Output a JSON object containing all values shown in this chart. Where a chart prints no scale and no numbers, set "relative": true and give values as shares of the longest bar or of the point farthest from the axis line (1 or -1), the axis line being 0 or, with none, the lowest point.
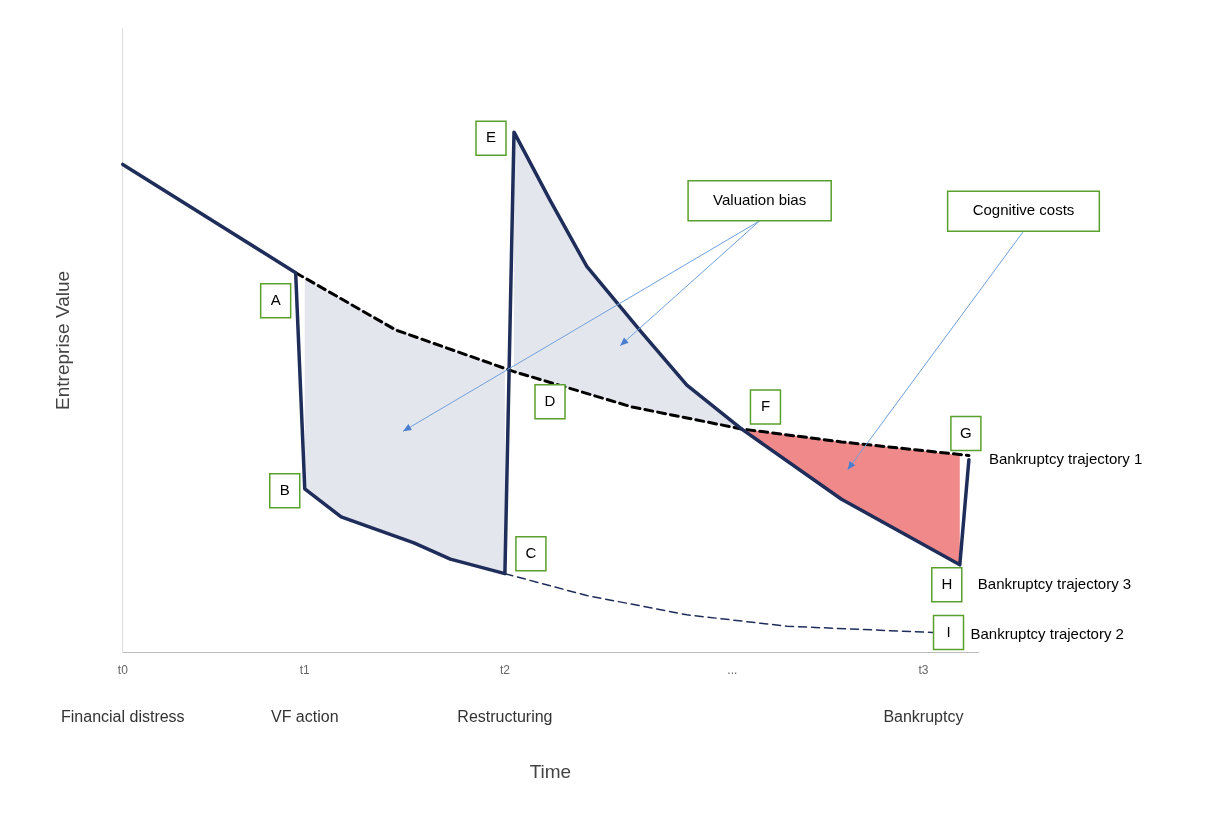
{
  "chart_data": {
    "type": "line",
    "relative": true,
    "xlabel": "Time",
    "ylabel": "Entreprise Value",
    "legend": false,
    "categories": [
      "t0",
      null,
      null,
      null,
      null,
      null,
      null,
      null,
      null,
      null,
      null,
      null,
      null,
      null,
      null,
      null,
      null,
      null,
      null,
      null,
      "t1",
      null,
      null,
      null,
      null,
      null,
      null,
      null,
      null,
      null,
      null,
      null,
      null,
      null,
      null,
      null,
      null,
      null,
      null,
      null,
      null,
      null,
      "t2",
      null,
      null,
      null,
      null,
      null,
      null,
      null,
      null,
      null,
      null,
      null,
      null,
      null,
      null,
      null,
      null,
      null,
      null,
      null,
      null,
      null,
      null,
      null,
      null,
      "...",
      null,
      null,
      null,
      null,
      null,
      null,
      null,
      null,
      null,
      null,
      null,
      null,
      null,
      null,
      null,
      null,
      null,
      null,
      null,
      null,
      "t3",
      null,
      null,
      null,
      null,
      null,
      null
    ],
    "series": [
      {
        "type": "area",
        "color": "#e4e6ee",
        "values": [
          null,
          null,
          null,
          null,
          null,
          null,
          null,
          null,
          null,
          null,
          null,
          null,
          null,
          null,
          null,
          null,
          null,
          null,
          null,
          null,
          0.72,
          null,
          null,
          null,
          0.68,
          null,
          null,
          null,
          null,
          null,
          null,
          null,
          0.607,
          null,
          null,
          null,
          0.582,
          null,
          null,
          null,
          null,
          null,
          0.546,
          null,
          null,
          null,
          null,
          null,
          null,
          null,
          null,
          null,
          null,
          null,
          null,
          null,
          null,
          null,
          null,
          null,
          null,
          null,
          null,
          null,
          null,
          null,
          null,
          null,
          null,
          null,
          null,
          null,
          null,
          null,
          null,
          null,
          null,
          null,
          null,
          null,
          null,
          null,
          null,
          null,
          null,
          null,
          null,
          null,
          null,
          null,
          null,
          null,
          null,
          null,
          null
        ]
      },
      {
        "type": "area",
        "color": "#e4e6ee",
        "values": [
          null,
          null,
          null,
          null,
          null,
          null,
          null,
          null,
          null,
          null,
          null,
          null,
          null,
          null,
          null,
          null,
          null,
          null,
          null,
          null,
          null,
          null,
          null,
          null,
          null,
          null,
          null,
          null,
          null,
          null,
          null,
          null,
          null,
          null,
          null,
          null,
          null,
          null,
          null,
          null,
          null,
          null,
          null,
          1.0,
          null,
          null,
          null,
          0.868,
          null,
          null,
          null,
          0.742,
          null,
          null,
          null,
          null,
          null,
          0.616,
          null,
          null,
          null,
          null,
          0.514,
          null,
          null,
          null,
          null,
          null,
          0.43,
          null,
          null,
          null,
          null,
          null,
          null,
          null,
          null,
          null,
          null,
          null,
          null,
          null,
          null,
          null,
          null,
          null,
          null,
          null,
          null,
          null,
          null,
          null,
          null,
          null,
          null
        ]
      },
      {
        "type": "area",
        "color": "#f08a8a",
        "values": [
          null,
          null,
          null,
          null,
          null,
          null,
          null,
          null,
          null,
          null,
          null,
          null,
          null,
          null,
          null,
          null,
          null,
          null,
          null,
          null,
          null,
          null,
          null,
          null,
          null,
          null,
          null,
          null,
          null,
          null,
          null,
          null,
          null,
          null,
          null,
          null,
          null,
          null,
          null,
          null,
          null,
          null,
          null,
          null,
          null,
          null,
          null,
          null,
          null,
          null,
          null,
          null,
          null,
          null,
          null,
          null,
          null,
          null,
          null,
          null,
          null,
          null,
          null,
          null,
          null,
          null,
          null,
          null,
          0.43,
          null,
          null,
          null,
          null,
          null,
          null,
          null,
          null,
          null,
          null,
          0.405,
          null,
          null,
          null,
          null,
          null,
          null,
          null,
          null,
          null,
          null,
          null,
          null,
          0.38,
          null,
          null
        ]
      },
      {
        "color": "#1f2d5a",
        "line_style": "solid",
        "values": [
          0.938,
          null,
          null,
          null,
          null,
          null,
          null,
          null,
          null,
          null,
          null,
          null,
          null,
          null,
          null,
          null,
          null,
          null,
          null,
          0.73,
          0.315,
          null,
          null,
          null,
          0.261,
          null,
          null,
          null,
          null,
          null,
          null,
          null,
          0.211,
          null,
          null,
          null,
          0.18,
          null,
          null,
          null,
          null,
          null,
          0.152,
          1.0,
          null,
          null,
          null,
          0.868,
          null,
          null,
          null,
          0.742,
          null,
          null,
          null,
          null,
          null,
          0.616,
          null,
          null,
          null,
          null,
          0.514,
          null,
          null,
          null,
          null,
          null,
          0.43,
          null,
          null,
          null,
          null,
          null,
          null,
          null,
          null,
          null,
          null,
          0.295,
          null,
          null,
          null,
          null,
          null,
          null,
          null,
          null,
          null,
          null,
          null,
          null,
          0.169,
          0.371,
          null
        ]
      },
      {
        "color": "#000000",
        "line_style": "dashed",
        "values": [
          null,
          null,
          null,
          null,
          null,
          null,
          null,
          null,
          null,
          null,
          null,
          null,
          null,
          null,
          null,
          null,
          null,
          null,
          null,
          0.73,
          null,
          null,
          null,
          null,
          null,
          null,
          null,
          null,
          null,
          null,
          0.62,
          null,
          null,
          null,
          null,
          null,
          null,
          null,
          null,
          null,
          null,
          null,
          null,
          0.54,
          null,
          null,
          null,
          null,
          null,
          null,
          null,
          null,
          null,
          null,
          null,
          null,
          0.472,
          null,
          null,
          null,
          null,
          null,
          null,
          null,
          null,
          null,
          null,
          null,
          0.43,
          null,
          null,
          null,
          null,
          null,
          null,
          null,
          null,
          null,
          null,
          0.405,
          null,
          null,
          null,
          null,
          null,
          null,
          null,
          null,
          null,
          null,
          null,
          null,
          null,
          0.379,
          null
        ]
      },
      {
        "color": "#1f2d5a",
        "line_style": "dashed",
        "values": [
          null,
          null,
          null,
          null,
          null,
          null,
          null,
          null,
          null,
          null,
          null,
          null,
          null,
          null,
          null,
          null,
          null,
          null,
          null,
          null,
          null,
          null,
          null,
          null,
          null,
          null,
          null,
          null,
          null,
          null,
          null,
          null,
          null,
          null,
          null,
          null,
          null,
          null,
          null,
          null,
          null,
          null,
          0.152,
          null,
          null,
          null,
          null,
          null,
          null,
          null,
          null,
          0.11,
          null,
          null,
          null,
          null,
          null,
          null,
          null,
          null,
          null,
          null,
          0.073,
          null,
          null,
          null,
          null,
          null,
          null,
          null,
          null,
          null,
          null,
          0.051,
          null,
          null,
          null,
          null,
          null,
          null,
          null,
          null,
          null,
          null,
          null,
          null,
          null,
          null,
          null,
          0.039,
          null,
          null,
          null,
          null,
          null
        ]
      }
    ],
    "annotations": [
      "A",
      "B",
      "C",
      "D",
      "E",
      "F",
      "G",
      "H",
      "I",
      "Bankruptcy trajectory 1",
      "Bankruptcy trajectory 3",
      "Bankruptcy trajectory 2",
      "Valuation bias",
      "Cognitive costs",
      "Financial distress",
      "VF action",
      "Restructuring",
      "Bankruptcy"
    ]
  }
}
